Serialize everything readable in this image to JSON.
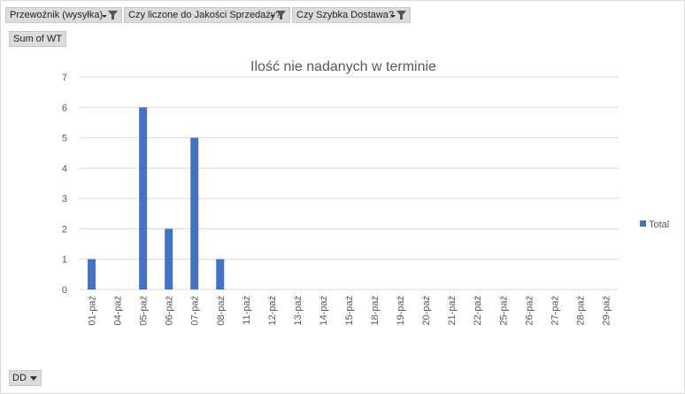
{
  "filters": [
    {
      "label": "Przewoźnik (wysyłka)"
    },
    {
      "label": "Czy liczone do Jakości Sprzedaży?"
    },
    {
      "label": "Czy Szybka Dostawa?"
    }
  ],
  "value_field": "Sum of WT",
  "axis_field": "DD",
  "colors": {
    "bar": "#4472c4",
    "grid": "#d9d9d9",
    "button": "#dcdcdc",
    "text": "#595959"
  },
  "chart_data": {
    "type": "bar",
    "title": "Ilość nie nadanych w terminie",
    "categories": [
      "01-paź",
      "04-paź",
      "05-paź",
      "06-paź",
      "07-paź",
      "08-paź",
      "11-paź",
      "12-paź",
      "13-paź",
      "14-paź",
      "15-paź",
      "18-paź",
      "19-paź",
      "20-paź",
      "21-paź",
      "22-paź",
      "25-paź",
      "26-paź",
      "27-paź",
      "28-paź",
      "29-paź"
    ],
    "series": [
      {
        "name": "Total",
        "values": [
          1,
          0,
          6,
          2,
          5,
          1,
          0,
          0,
          0,
          0,
          0,
          0,
          0,
          0,
          0,
          0,
          0,
          0,
          0,
          0,
          0
        ]
      }
    ],
    "ylim": [
      0,
      7
    ],
    "yticks": [
      0,
      1,
      2,
      3,
      4,
      5,
      6,
      7
    ],
    "grid": true,
    "legend": "right"
  }
}
